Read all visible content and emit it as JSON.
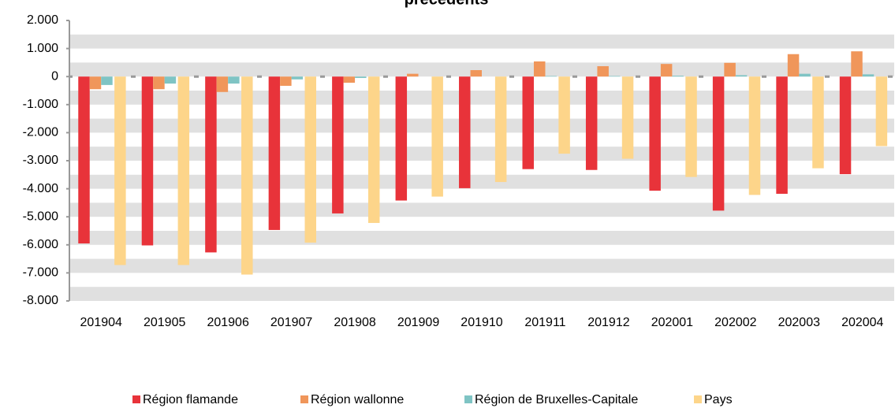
{
  "chart_data": {
    "type": "bar",
    "title": "précédents",
    "categories": [
      "201904",
      "201905",
      "201906",
      "201907",
      "201908",
      "201909",
      "201910",
      "201911",
      "201912",
      "202001",
      "202002",
      "202003",
      "202004"
    ],
    "series": [
      {
        "name": "Région flamande",
        "color": "#e8333a",
        "values": [
          -5950,
          -6020,
          -6270,
          -5470,
          -4880,
          -4420,
          -3980,
          -3300,
          -3330,
          -4070,
          -4780,
          -4180,
          -3480
        ]
      },
      {
        "name": "Région wallonne",
        "color": "#f0965a",
        "values": [
          -450,
          -450,
          -550,
          -330,
          -220,
          100,
          230,
          540,
          370,
          450,
          490,
          800,
          900
        ]
      },
      {
        "name": "Région de Bruxelles-Capitale",
        "color": "#7fc4c4",
        "values": [
          -300,
          -250,
          -250,
          -100,
          -50,
          0,
          0,
          20,
          20,
          30,
          50,
          100,
          80
        ]
      },
      {
        "name": "Pays",
        "color": "#fdd58a",
        "values": [
          -6720,
          -6720,
          -7060,
          -5920,
          -5220,
          -4280,
          -3760,
          -2750,
          -2930,
          -3580,
          -4220,
          -3270,
          -2480
        ]
      }
    ],
    "ylim": [
      -8000,
      2000
    ],
    "yticks": [
      {
        "value": 2000,
        "label": "2.000"
      },
      {
        "value": 1000,
        "label": "1.000"
      },
      0,
      {
        "value": -1000,
        "label": "-1.000"
      },
      {
        "value": -2000,
        "label": "-2.000"
      },
      {
        "value": -3000,
        "label": "-3.000"
      },
      {
        "value": -4000,
        "label": "-4.000"
      },
      {
        "value": -5000,
        "label": "-5.000"
      },
      {
        "value": -6000,
        "label": "-6.000"
      },
      {
        "value": -7000,
        "label": "-7.000"
      },
      {
        "value": -8000,
        "label": "-8.000"
      }
    ],
    "grid": true,
    "legend": "bottom"
  }
}
